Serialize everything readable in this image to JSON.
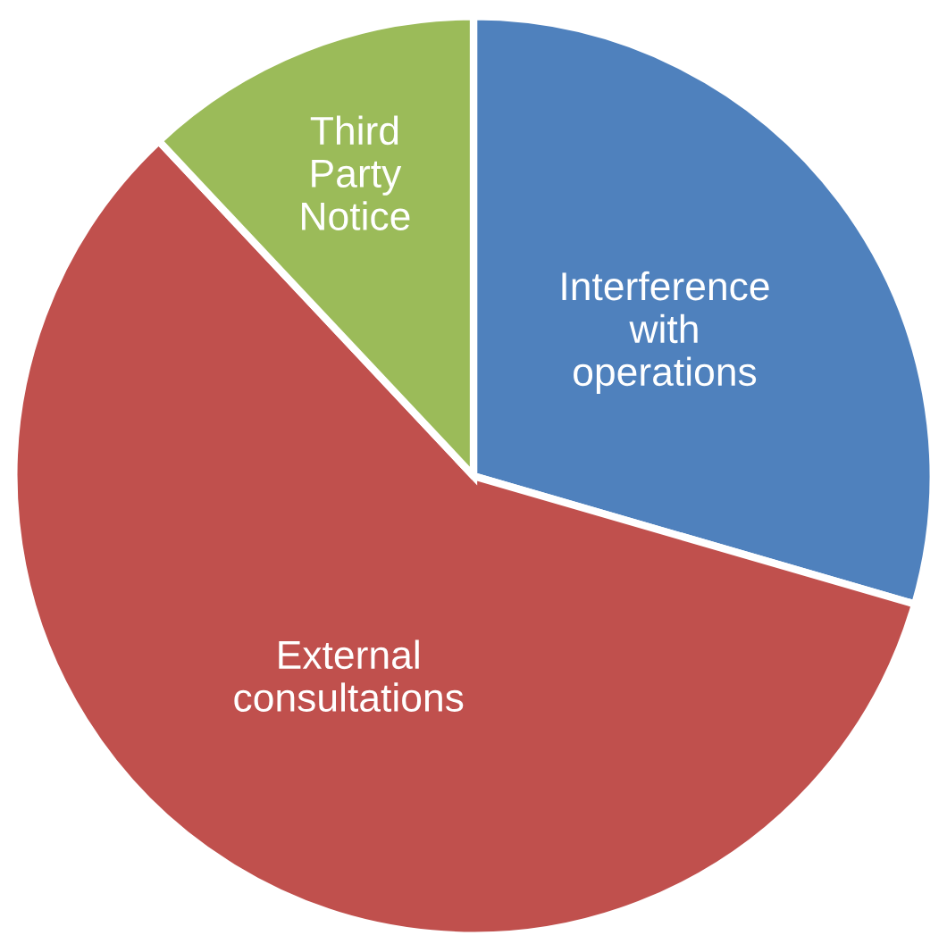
{
  "chart_data": {
    "type": "pie",
    "categories": [
      "Interference\nwith\noperations",
      "External\nconsultations",
      "Third\nParty\nNotice"
    ],
    "values": [
      29.5,
      58.5,
      12
    ],
    "colors": [
      "#4f81bd",
      "#c0504d",
      "#9bbb59"
    ],
    "legend": false
  }
}
